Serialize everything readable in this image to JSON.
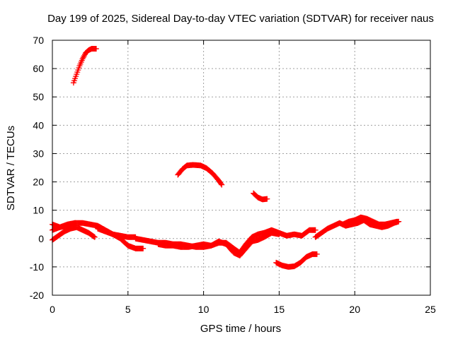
{
  "chart_data": {
    "type": "scatter",
    "title": "Day 199 of 2025, Sidereal Day-to-day VTEC variation (SDTVAR) for receiver naus",
    "xlabel": "GPS time / hours",
    "ylabel": "SDTVAR / TECUs",
    "xlim": [
      0,
      25
    ],
    "ylim": [
      -20,
      70
    ],
    "xticks": [
      0,
      5,
      10,
      15,
      20,
      25
    ],
    "yticks": [
      -20,
      -10,
      0,
      10,
      20,
      30,
      40,
      50,
      60,
      70
    ],
    "grid": true,
    "marker": "+",
    "color": "#ff0000",
    "series": [
      {
        "name": "track-high",
        "points": [
          [
            1.4,
            55
          ],
          [
            1.6,
            58
          ],
          [
            1.8,
            61
          ],
          [
            2.0,
            63.5
          ],
          [
            2.2,
            65.5
          ],
          [
            2.4,
            66.5
          ],
          [
            2.6,
            67
          ],
          [
            2.9,
            67
          ]
        ]
      },
      {
        "name": "track-hump",
        "points": [
          [
            8.3,
            22.5
          ],
          [
            8.6,
            24.5
          ],
          [
            8.9,
            25.8
          ],
          [
            9.3,
            26
          ],
          [
            9.8,
            25.8
          ],
          [
            10.2,
            24.8
          ],
          [
            10.6,
            23
          ],
          [
            11.0,
            20.5
          ],
          [
            11.2,
            19
          ]
        ]
      },
      {
        "name": "track-short",
        "points": [
          [
            13.3,
            16
          ],
          [
            13.6,
            14.5
          ],
          [
            13.9,
            13.8
          ],
          [
            14.2,
            14
          ]
        ]
      },
      {
        "name": "track-dip",
        "points": [
          [
            14.8,
            -8.5
          ],
          [
            15.2,
            -9.5
          ],
          [
            15.6,
            -10
          ],
          [
            16.0,
            -9.8
          ],
          [
            16.4,
            -8.5
          ],
          [
            16.8,
            -6.5
          ],
          [
            17.2,
            -5.5
          ],
          [
            17.5,
            -5.5
          ]
        ]
      },
      {
        "name": "track-desc-a",
        "points": [
          [
            0,
            -0.5
          ],
          [
            0.4,
            1
          ],
          [
            0.8,
            2.5
          ],
          [
            1.2,
            3.5
          ],
          [
            1.6,
            4
          ],
          [
            2.0,
            3
          ],
          [
            2.4,
            2
          ],
          [
            2.8,
            0.5
          ]
        ]
      },
      {
        "name": "track-desc-b",
        "points": [
          [
            0,
            3
          ],
          [
            0.5,
            4
          ],
          [
            1.0,
            5
          ],
          [
            1.5,
            5.5
          ],
          [
            2.0,
            5.5
          ],
          [
            2.5,
            5
          ],
          [
            3.0,
            4.5
          ],
          [
            3.5,
            3
          ],
          [
            4.0,
            1.5
          ],
          [
            4.5,
            0
          ],
          [
            5.0,
            -2.5
          ],
          [
            5.5,
            -3.5
          ],
          [
            6.0,
            -3.5
          ]
        ]
      },
      {
        "name": "track-desc-c",
        "points": [
          [
            0,
            5
          ],
          [
            0.5,
            4
          ],
          [
            1.0,
            4.5
          ],
          [
            1.5,
            5.5
          ]
        ]
      },
      {
        "name": "track-desc-d",
        "points": [
          [
            3.0,
            3.5
          ],
          [
            3.5,
            2.5
          ],
          [
            4.0,
            1.5
          ],
          [
            4.5,
            1
          ],
          [
            5.0,
            0.5
          ],
          [
            5.5,
            0.5
          ]
        ]
      },
      {
        "name": "track-mid",
        "points": [
          [
            5.5,
            0
          ],
          [
            6.0,
            -0.5
          ],
          [
            6.5,
            -1
          ],
          [
            7.0,
            -1.5
          ],
          [
            7.5,
            -1.5
          ],
          [
            8.0,
            -2
          ],
          [
            8.5,
            -2
          ],
          [
            9.0,
            -2.5
          ],
          [
            9.5,
            -3
          ],
          [
            10.0,
            -3
          ],
          [
            10.5,
            -2.5
          ],
          [
            11.0,
            -1.5
          ],
          [
            11.5,
            -1.5
          ],
          [
            12.0,
            -3.5
          ],
          [
            12.4,
            -5
          ],
          [
            12.8,
            -2
          ],
          [
            13.2,
            0.5
          ],
          [
            13.6,
            1.5
          ],
          [
            14.0,
            2
          ],
          [
            14.5,
            3
          ],
          [
            15.0,
            2
          ],
          [
            15.5,
            1
          ],
          [
            16.0,
            1.5
          ],
          [
            16.5,
            1
          ],
          [
            17.0,
            3
          ],
          [
            17.4,
            3
          ]
        ]
      },
      {
        "name": "track-mid-b",
        "points": [
          [
            7.0,
            -2
          ],
          [
            7.5,
            -2.5
          ],
          [
            8.0,
            -2.5
          ],
          [
            8.5,
            -3
          ],
          [
            9.0,
            -3
          ],
          [
            9.5,
            -2.5
          ],
          [
            10.0,
            -2
          ],
          [
            10.5,
            -2.5
          ],
          [
            11.0,
            -1
          ],
          [
            11.5,
            -2
          ],
          [
            12.0,
            -5
          ],
          [
            12.4,
            -6
          ],
          [
            12.8,
            -3.5
          ],
          [
            13.2,
            -1
          ],
          [
            13.6,
            -0.5
          ],
          [
            14.0,
            0.5
          ],
          [
            14.5,
            2
          ],
          [
            15.0,
            1.5
          ]
        ]
      },
      {
        "name": "track-end",
        "points": [
          [
            17.4,
            0.5
          ],
          [
            17.8,
            2
          ],
          [
            18.2,
            3.5
          ],
          [
            18.6,
            4.5
          ],
          [
            19.0,
            5.5
          ],
          [
            19.4,
            4.5
          ],
          [
            19.8,
            5
          ],
          [
            20.2,
            5.5
          ],
          [
            20.6,
            6.5
          ],
          [
            21.0,
            5
          ],
          [
            21.4,
            4.5
          ],
          [
            21.8,
            4
          ],
          [
            22.2,
            4.5
          ],
          [
            22.6,
            5.5
          ],
          [
            22.9,
            6
          ]
        ]
      },
      {
        "name": "track-end-b",
        "points": [
          [
            19.2,
            5
          ],
          [
            19.6,
            6
          ],
          [
            20.0,
            6.5
          ],
          [
            20.4,
            7.5
          ],
          [
            20.8,
            7
          ],
          [
            21.2,
            6
          ],
          [
            21.6,
            5
          ],
          [
            22.0,
            5
          ],
          [
            22.4,
            5.5
          ],
          [
            22.8,
            6
          ]
        ]
      }
    ]
  }
}
